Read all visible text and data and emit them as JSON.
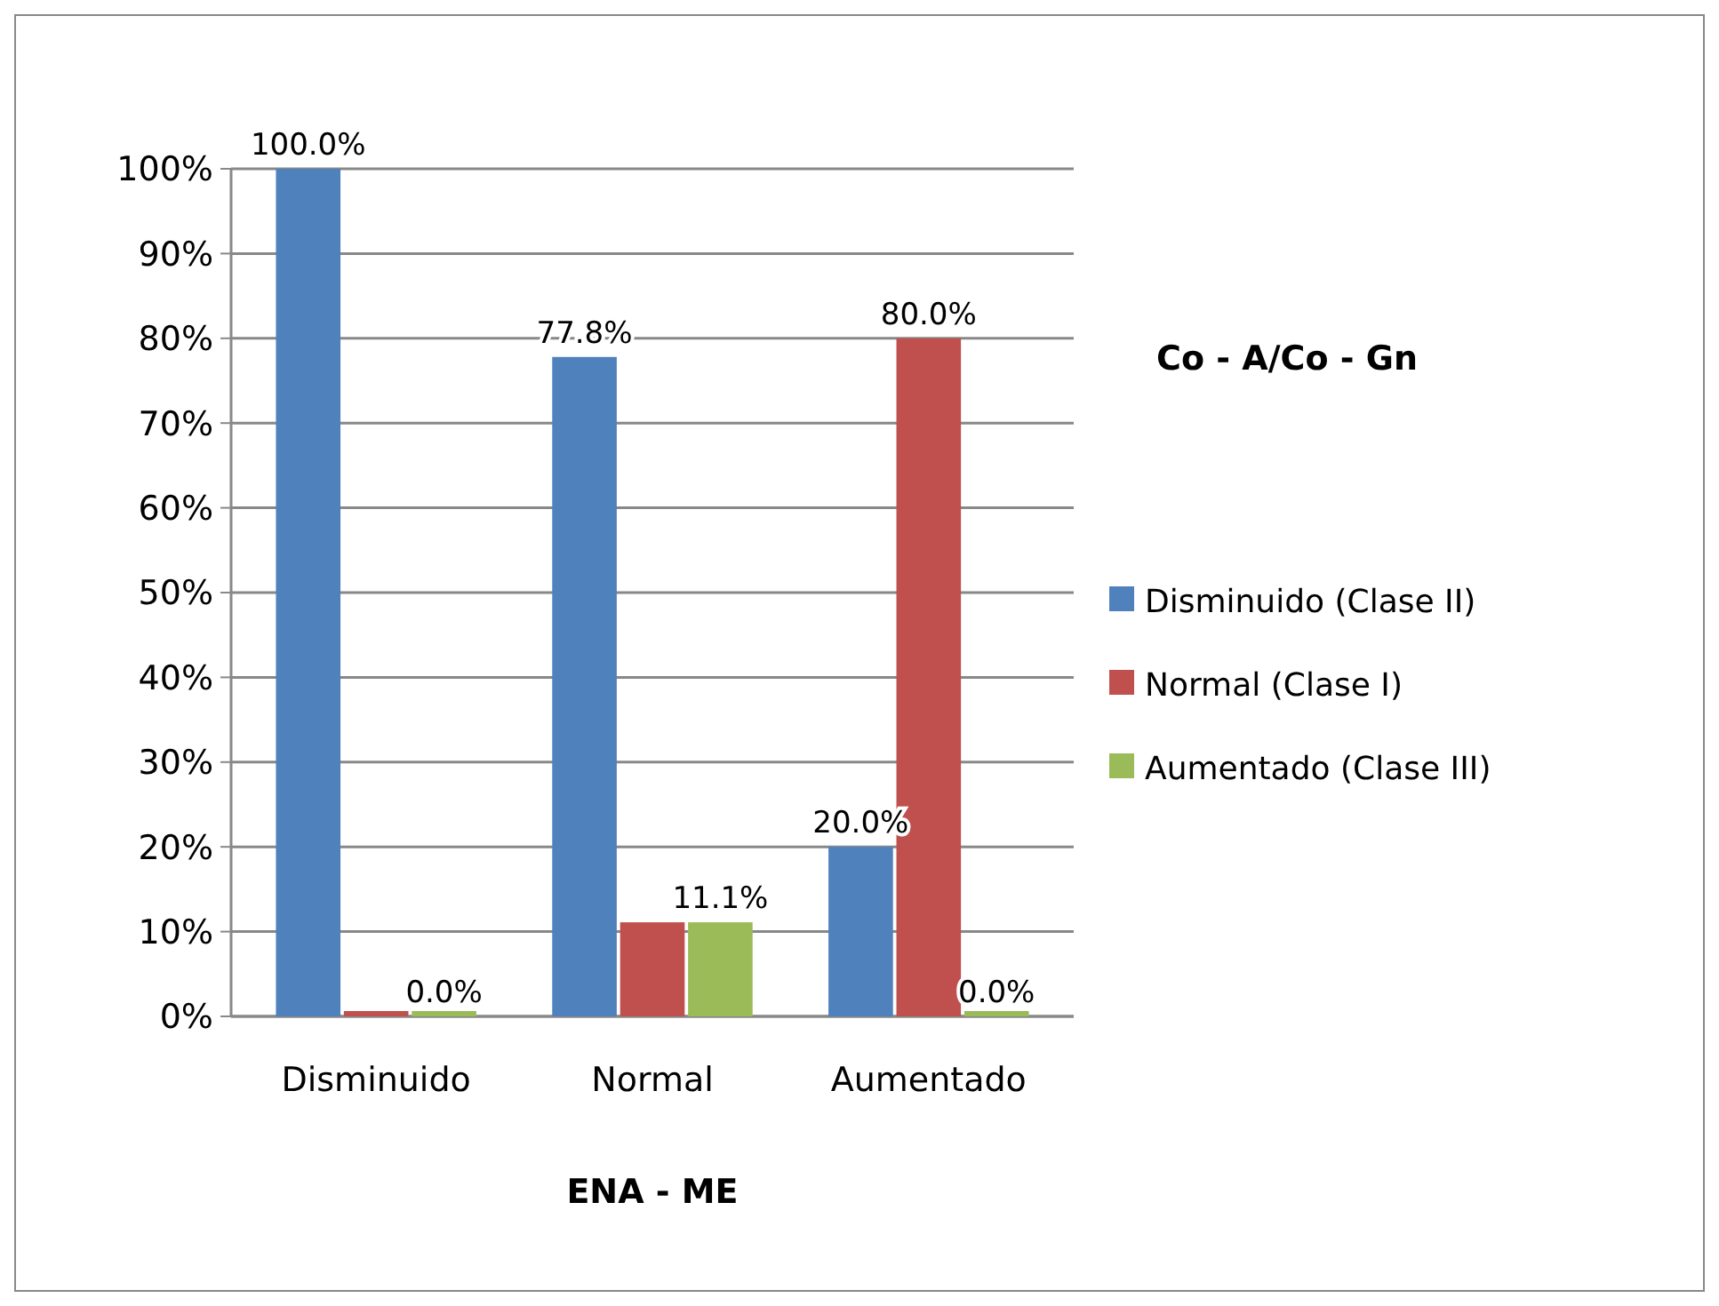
{
  "chart_data": {
    "type": "bar",
    "title": "Co - A/Co - Gn",
    "xlabel": "ENA - ME",
    "categories": [
      "Disminuido",
      "Normal",
      "Aumentado"
    ],
    "series": [
      {
        "name": "Disminuido (Clase II)",
        "color": "#4f81bd",
        "values": [
          100,
          77.8,
          20
        ],
        "value_labels": [
          "100.0%",
          "77.8%",
          "20.0%"
        ]
      },
      {
        "name": "Normal (Clase I)",
        "color": "#c0504d",
        "values": [
          0,
          11.1,
          80
        ],
        "value_labels": [
          null,
          null,
          "80.0%"
        ]
      },
      {
        "name": "Aumentado (Clase III)",
        "color": "#9bbb59",
        "values": [
          0,
          11.1,
          0
        ],
        "value_labels": [
          "0.0%",
          "11.1%",
          "0.0%"
        ]
      }
    ],
    "ylim": [
      0,
      100
    ],
    "yticks": [
      {
        "value": 0,
        "label": "0%"
      },
      {
        "value": 10,
        "label": "10%"
      },
      {
        "value": 20,
        "label": "20%"
      },
      {
        "value": 30,
        "label": "30%"
      },
      {
        "value": 40,
        "label": "40%"
      },
      {
        "value": 50,
        "label": "50%"
      },
      {
        "value": 60,
        "label": "60%"
      },
      {
        "value": 70,
        "label": "70%"
      },
      {
        "value": 80,
        "label": "80%"
      },
      {
        "value": 90,
        "label": "90%"
      },
      {
        "value": 100,
        "label": "100%"
      }
    ],
    "grid": "y",
    "legend": "right"
  }
}
